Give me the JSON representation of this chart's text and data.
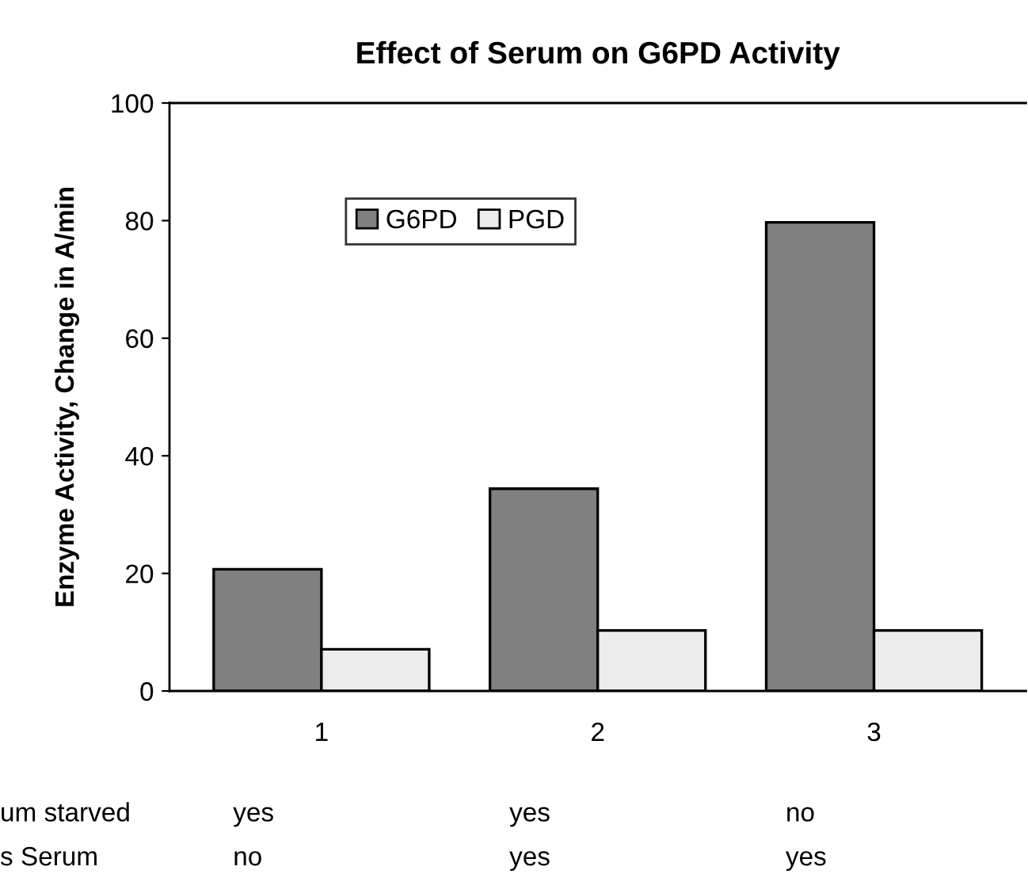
{
  "chart_data": {
    "type": "bar",
    "title": "Effect of Serum on G6PD Activity",
    "ylabel": "Enzyme Activity, Change in A/min",
    "categories": [
      "1",
      "2",
      "3"
    ],
    "series": [
      {
        "name": "G6PD",
        "color": "#808080",
        "values": [
          20.7,
          34.4,
          79.7
        ]
      },
      {
        "name": "PGD",
        "color": "#ececec",
        "values": [
          7.1,
          10.3,
          10.3
        ]
      }
    ],
    "ylim": [
      0,
      100
    ],
    "yticks": [
      0,
      20,
      40,
      60,
      80,
      100
    ],
    "grid": false,
    "legend": "top",
    "annotations": [
      "um starved",
      "yes",
      "yes",
      "no",
      "s Serum",
      "no",
      "yes",
      "yes"
    ]
  }
}
